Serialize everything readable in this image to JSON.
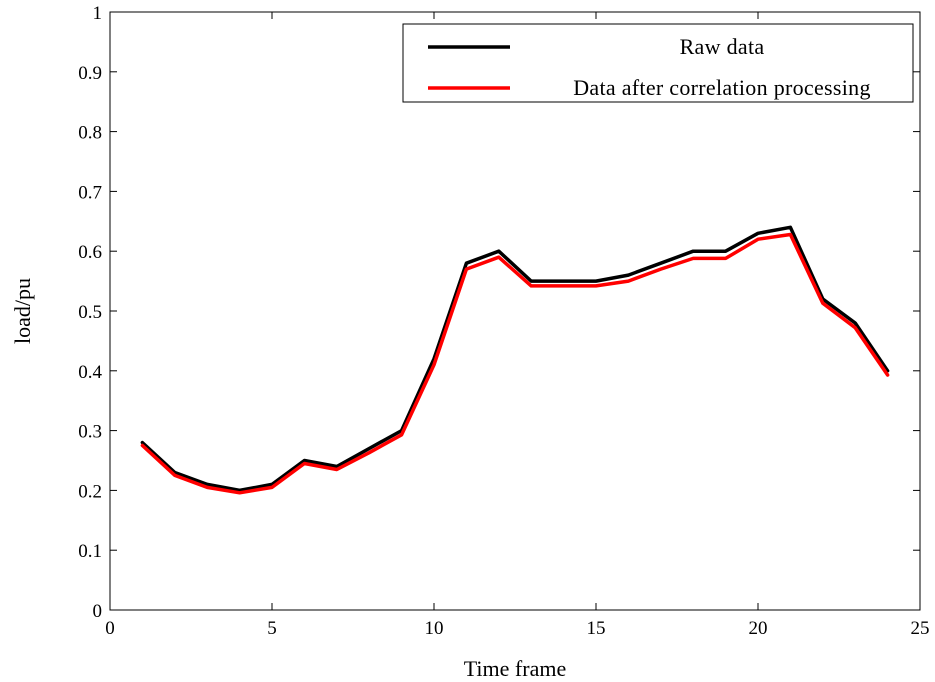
{
  "chart_data": {
    "type": "line",
    "xlabel": "Time frame",
    "ylabel": "load/pu",
    "xlim": [
      0,
      25
    ],
    "ylim": [
      0,
      1
    ],
    "xticks": [
      0,
      5,
      10,
      15,
      20,
      25
    ],
    "yticks": [
      0,
      0.1,
      0.2,
      0.3,
      0.4,
      0.5,
      0.6,
      0.7,
      0.8,
      0.9,
      1
    ],
    "grid": false,
    "legend_position": "top-right",
    "x": [
      1,
      2,
      3,
      4,
      5,
      6,
      7,
      8,
      9,
      10,
      11,
      12,
      13,
      14,
      15,
      16,
      17,
      18,
      19,
      20,
      21,
      22,
      23,
      24
    ],
    "series": [
      {
        "name": "Raw data",
        "color": "#000000",
        "values": [
          0.28,
          0.23,
          0.21,
          0.2,
          0.21,
          0.25,
          0.24,
          0.27,
          0.3,
          0.42,
          0.58,
          0.6,
          0.55,
          0.55,
          0.55,
          0.56,
          0.58,
          0.6,
          0.6,
          0.63,
          0.64,
          0.52,
          0.48,
          0.4
        ]
      },
      {
        "name": "Data after correlation processing",
        "color": "#ff0000",
        "values": [
          0.275,
          0.225,
          0.205,
          0.196,
          0.205,
          0.245,
          0.235,
          0.263,
          0.293,
          0.41,
          0.57,
          0.59,
          0.542,
          0.542,
          0.542,
          0.55,
          0.57,
          0.588,
          0.588,
          0.62,
          0.628,
          0.513,
          0.472,
          0.393
        ]
      }
    ]
  }
}
